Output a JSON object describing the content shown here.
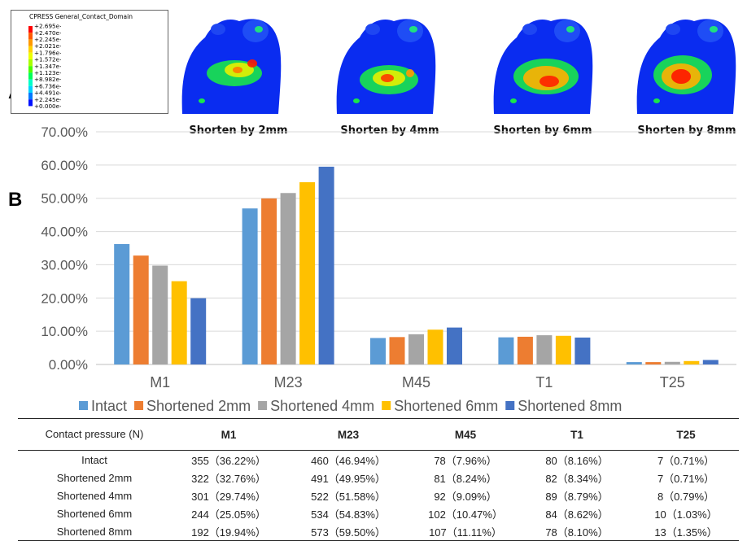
{
  "panel_labels": {
    "a": "A",
    "b": "B"
  },
  "fea_legend": {
    "title": "CPRESS   General_Contact_Domain",
    "values": [
      "+2.695e+00",
      "+2.470e+00",
      "+2.245e+00",
      "+2.021e+00",
      "+1.796e+00",
      "+1.572e+00",
      "+1.347e+00",
      "+1.123e+00",
      "+8.982e-01",
      "+6.736e-01",
      "+4.491e-01",
      "+2.245e-01",
      "+0.000e+00"
    ],
    "colors": [
      "#ff0000",
      "#ff5a00",
      "#ff9900",
      "#ffd200",
      "#ecff00",
      "#a8ff00",
      "#4cff00",
      "#00ff5a",
      "#00ffc8",
      "#00d2ff",
      "#0078ff",
      "#0010ff"
    ]
  },
  "feet": [
    {
      "label": "Shorten by 2mm"
    },
    {
      "label": "Shorten by 4mm"
    },
    {
      "label": "Shorten by 6mm"
    },
    {
      "label": "Shorten by 8mm"
    }
  ],
  "chart_data": {
    "type": "bar",
    "categories": [
      "M1",
      "M23",
      "M45",
      "T1",
      "T25"
    ],
    "series": [
      {
        "name": "Intact",
        "color": "#5b9bd5",
        "values": [
          36.22,
          46.94,
          7.96,
          8.16,
          0.71
        ]
      },
      {
        "name": "Shortened 2mm",
        "color": "#ed7d31",
        "values": [
          32.76,
          49.95,
          8.24,
          8.34,
          0.71
        ]
      },
      {
        "name": "Shortened 4mm",
        "color": "#a5a5a5",
        "values": [
          29.74,
          51.58,
          9.09,
          8.79,
          0.79
        ]
      },
      {
        "name": "Shortened 6mm",
        "color": "#ffc000",
        "values": [
          25.05,
          54.83,
          10.47,
          8.62,
          1.03
        ]
      },
      {
        "name": "Shortened 8mm",
        "color": "#4472c4",
        "values": [
          19.94,
          59.5,
          11.11,
          8.1,
          1.35
        ]
      }
    ],
    "y_ticks": [
      "0.00%",
      "10.00%",
      "20.00%",
      "30.00%",
      "40.00%",
      "50.00%",
      "60.00%",
      "70.00%"
    ],
    "ylim": [
      0,
      70
    ],
    "grid": true,
    "legend_position": "bottom"
  },
  "table": {
    "header": [
      "Contact pressure (N)",
      "M1",
      "M23",
      "M45",
      "T1",
      "T25"
    ],
    "rows": [
      [
        "Intact",
        "355（36.22%）",
        "460（46.94%）",
        "78（7.96%）",
        "80（8.16%）",
        "7（0.71%）"
      ],
      [
        "Shortened 2mm",
        "322（32.76%）",
        "491（49.95%）",
        "81（8.24%）",
        "82（8.34%）",
        "7（0.71%）"
      ],
      [
        "Shortened 4mm",
        "301（29.74%）",
        "522（51.58%）",
        "92（9.09%）",
        "89（8.79%）",
        "8（0.79%）"
      ],
      [
        "Shortened 6mm",
        "244（25.05%）",
        "534（54.83%）",
        "102（10.47%）",
        "84（8.62%）",
        "10（1.03%）"
      ],
      [
        "Shortened 8mm",
        "192（19.94%）",
        "573（59.50%）",
        "107（11.11%）",
        "78（8.10%）",
        "13（1.35%）"
      ]
    ]
  }
}
